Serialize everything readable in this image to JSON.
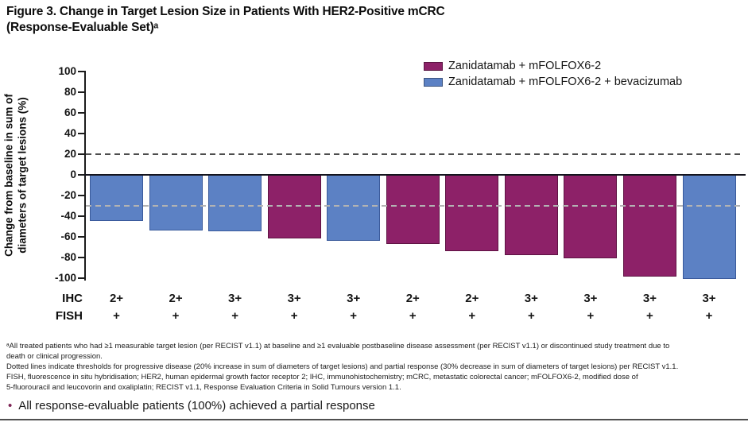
{
  "figure": {
    "title_line1": "Figure 3. Change in Target Lesion Size in Patients With HER2-Positive mCRC",
    "title_line2": "(Response-Evaluable Set)ᵃ"
  },
  "legend": {
    "items": [
      {
        "label": "Zanidatamab + mFOLFOX6-2",
        "color": "#8D2168"
      },
      {
        "label": "Zanidatamab + mFOLFOX6-2 + bevacizumab",
        "color": "#5C81C4"
      }
    ]
  },
  "chart_data": {
    "type": "bar",
    "title": "Change in Target Lesion Size in Patients With HER2-Positive mCRC (Response-Evaluable Set)",
    "ylabel": "Change from baseline in sum of diameters of target lesions (%)",
    "ylabel_line1": "Change from baseline in sum of",
    "ylabel_line2": "diameters of target lesions (%)",
    "ylim": [
      -100,
      100
    ],
    "yticks": [
      100,
      80,
      60,
      40,
      20,
      0,
      -20,
      -40,
      -60,
      -80,
      -100
    ],
    "grid": false,
    "legend_position": "top-right",
    "thresholds": [
      {
        "name": "progressive disease threshold (+20%)",
        "value": 20,
        "color": "#4D4D4D"
      },
      {
        "name": "partial response threshold (-30%)",
        "value": -30,
        "color": "#B3B3B3"
      }
    ],
    "x_header_rows": [
      {
        "label": "IHC"
      },
      {
        "label": "FISH"
      }
    ],
    "bars": [
      {
        "value": -44,
        "legend_index": 1,
        "series": "Zanidatamab + mFOLFOX6-2 + bevacizumab",
        "ihc": "2+",
        "fish": "+"
      },
      {
        "value": -53,
        "legend_index": 1,
        "series": "Zanidatamab + mFOLFOX6-2 + bevacizumab",
        "ihc": "2+",
        "fish": "+"
      },
      {
        "value": -54,
        "legend_index": 1,
        "series": "Zanidatamab + mFOLFOX6-2 + bevacizumab",
        "ihc": "3+",
        "fish": "+"
      },
      {
        "value": -61,
        "legend_index": 0,
        "series": "Zanidatamab + mFOLFOX6-2",
        "ihc": "3+",
        "fish": "+"
      },
      {
        "value": -63,
        "legend_index": 1,
        "series": "Zanidatamab + mFOLFOX6-2 + bevacizumab",
        "ihc": "3+",
        "fish": "+"
      },
      {
        "value": -66,
        "legend_index": 0,
        "series": "Zanidatamab + mFOLFOX6-2",
        "ihc": "2+",
        "fish": "+"
      },
      {
        "value": -73,
        "legend_index": 0,
        "series": "Zanidatamab + mFOLFOX6-2",
        "ihc": "2+",
        "fish": "+"
      },
      {
        "value": -77,
        "legend_index": 0,
        "series": "Zanidatamab + mFOLFOX6-2",
        "ihc": "3+",
        "fish": "+"
      },
      {
        "value": -80,
        "legend_index": 0,
        "series": "Zanidatamab + mFOLFOX6-2",
        "ihc": "3+",
        "fish": "+"
      },
      {
        "value": -98,
        "legend_index": 0,
        "series": "Zanidatamab + mFOLFOX6-2",
        "ihc": "3+",
        "fish": "+"
      },
      {
        "value": -100,
        "legend_index": 1,
        "series": "Zanidatamab + mFOLFOX6-2 + bevacizumab",
        "ihc": "3+",
        "fish": "+"
      }
    ]
  },
  "footnotes": {
    "lines": [
      "ᵃAll treated patients who had ≥1 measurable target lesion (per RECIST v1.1) at baseline and ≥1 evaluable postbaseline disease assessment (per RECIST v1.1) or discontinued study treatment due to",
      "death or clinical progression.",
      "Dotted lines indicate thresholds for progressive disease (20% increase in sum of diameters of target lesions) and partial response (30% decrease in sum of diameters of target lesions) per RECIST v1.1.",
      "FISH, fluorescence in situ hybridisation; HER2, human epidermal growth factor receptor 2; IHC, immunohistochemistry; mCRC, metastatic colorectal cancer; mFOLFOX6-2, modified dose of",
      "5-fluorouracil and leucovorin and oxaliplatin; RECIST v1.1, Response Evaluation Criteria in Solid Tumours version 1.1."
    ]
  },
  "summary_bullet": {
    "bullet_glyph": "•",
    "text": "All response-evaluable patients (100%) achieved a partial response",
    "bullet_color": "#7E2456"
  }
}
